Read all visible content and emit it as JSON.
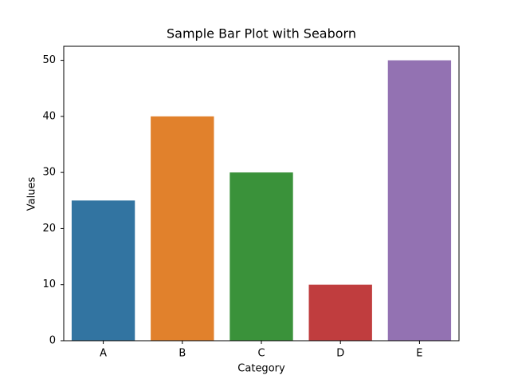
{
  "chart_data": {
    "type": "bar",
    "title": "Sample Bar Plot with Seaborn",
    "x_label": "Category",
    "y_label": "Values",
    "categories": [
      "A",
      "B",
      "C",
      "D",
      "E"
    ],
    "values": [
      25,
      40,
      30,
      10,
      50
    ],
    "colors": [
      "#3274a1",
      "#e1812c",
      "#3a923a",
      "#c03d3e",
      "#9372b2"
    ],
    "ylim": [
      0,
      52.5
    ],
    "yticks": [
      0,
      10,
      20,
      30,
      40,
      50
    ],
    "grid": false
  }
}
